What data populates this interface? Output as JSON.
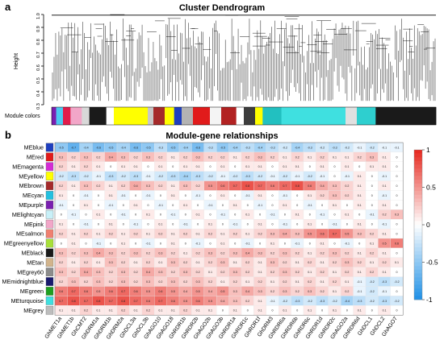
{
  "panels": {
    "a": {
      "letter": "a",
      "title": "Cluster Dendrogram",
      "ylabel": "Height",
      "y_ticks": [
        "0.3",
        "0.4",
        "0.5",
        "0.6",
        "0.7",
        "0.8",
        "0.9",
        "1.0"
      ],
      "color_bar_label": "Module colors"
    },
    "b": {
      "letter": "b",
      "title": "Module-gene relationships"
    }
  },
  "chart_data": [
    {
      "type": "dendrogram",
      "title": "Cluster Dendrogram",
      "ylabel": "Height",
      "ylim": [
        0.3,
        1.0
      ],
      "module_color_bar": [
        {
          "color": "#7a1fb0",
          "width": 0.012
        },
        {
          "color": "#4cc9f0",
          "width": 0.018
        },
        {
          "color": "#e11b4a",
          "width": 0.02
        },
        {
          "color": "#f2a6c8",
          "width": 0.03
        },
        {
          "color": "#d8d8d8",
          "width": 0.02
        },
        {
          "color": "#1a1a1a",
          "width": 0.045
        },
        {
          "color": "#ffffff",
          "width": 0.02
        },
        {
          "color": "#ffff00",
          "width": 0.09
        },
        {
          "color": "#c8c8c8",
          "width": 0.015
        },
        {
          "color": "#a52a2a",
          "width": 0.03
        },
        {
          "color": "#ffff00",
          "width": 0.025
        },
        {
          "color": "#1f3fbf",
          "width": 0.02
        },
        {
          "color": "#b3b3b3",
          "width": 0.03
        },
        {
          "color": "#e11b1b",
          "width": 0.045
        },
        {
          "color": "#f4f4f4",
          "width": 0.03
        },
        {
          "color": "#b22222",
          "width": 0.04
        },
        {
          "color": "#ffffff",
          "width": 0.02
        },
        {
          "color": "#3d3d3d",
          "width": 0.03
        },
        {
          "color": "#ffff00",
          "width": 0.02
        },
        {
          "color": "#22c0c0",
          "width": 0.05
        },
        {
          "color": "#3fe0e0",
          "width": 0.17
        },
        {
          "color": "#e0e0e0",
          "width": 0.03
        },
        {
          "color": "#2ecfcf",
          "width": 0.05
        },
        {
          "color": "#1a1a1a",
          "width": 0.16
        }
      ]
    },
    {
      "type": "heatmap",
      "title": "Module-gene relationships",
      "rows": [
        "MEblue",
        "MEred",
        "MEmagenta",
        "MEyellow",
        "MEbrown",
        "MEcyan",
        "MEpurple",
        "MElightcyan",
        "MEpink",
        "MEsalmon",
        "MEgreenyellow",
        "MEblack",
        "MEtan",
        "MEgrey60",
        "MEmidnightblue",
        "MEgreen",
        "MEturquoise",
        "MEgrey"
      ],
      "row_colors": [
        "#1f3fbf",
        "#e11b1b",
        "#d42cd4",
        "#ffff00",
        "#a52a2a",
        "#22c0e0",
        "#7a1fb0",
        "#c8f0f8",
        "#f2a6c8",
        "#f08070",
        "#a8e03a",
        "#1a1a1a",
        "#d2b48c",
        "#8c8c8c",
        "#1a1a6e",
        "#1fa01f",
        "#3fe0e0",
        "#bdbdbd"
      ],
      "columns": [
        "GhMET1a",
        "GhMET1b",
        "GhCMT2",
        "GhDRM1a",
        "GhDRM1b",
        "GhDRM2a",
        "GhDCL3a",
        "GhDCL3b",
        "GhAGO10",
        "GhAGO18",
        "GhRDR1b",
        "GhRDR2b",
        "GhAGO2b",
        "GhAGO3b",
        "GhRDR1a",
        "GhRDR1c",
        "GhRDR1f",
        "GhDRM3",
        "GhRDR6a",
        "GhRDR6b",
        "GhRDR6c",
        "GhRDR1d",
        "GhRDR2c",
        "GhAGO2a",
        "GhRDR6d",
        "GhDCL1",
        "GhDCL2",
        "GhAGO7"
      ],
      "scale": {
        "min": -1,
        "max": 1,
        "ticks": [
          "1",
          "0.5",
          "0",
          "-0.5",
          "-1"
        ]
      },
      "values": [
        [
          -0.5,
          -0.7,
          -0.4,
          -0.6,
          -0.5,
          -0.4,
          -0.6,
          -0.5,
          -0.3,
          -0.5,
          -0.4,
          -0.6,
          -0.3,
          -0.5,
          -0.4,
          -0.3,
          -0.4,
          -0.3,
          -0.2,
          -0.4,
          -0.3,
          -0.2,
          -0.3,
          -0.2,
          -0.1,
          -0.2,
          -0.1,
          -0.1
        ],
        [
          0.3,
          0.2,
          0.3,
          0.2,
          0.4,
          0.3,
          0.2,
          0.3,
          0.2,
          0.1,
          0.2,
          0.3,
          0.2,
          0.2,
          0.1,
          0.2,
          0.3,
          0.2,
          0.1,
          0.2,
          0.1,
          0.2,
          0.1,
          0.1,
          0.2,
          0.3,
          0.1,
          0.0
        ],
        [
          0.2,
          0.1,
          0.2,
          0.1,
          0.0,
          0.1,
          0.1,
          0.0,
          0.1,
          0.0,
          0.1,
          0.1,
          0.0,
          0.1,
          0.0,
          0.1,
          0.1,
          0.0,
          0.1,
          0.1,
          0.0,
          0.1,
          0.0,
          0.1,
          0.0,
          0.1,
          0.1,
          0.0
        ],
        [
          -0.2,
          -0.3,
          -0.2,
          -0.1,
          -0.3,
          -0.2,
          -0.3,
          -0.1,
          -0.2,
          -0.3,
          -0.4,
          -0.3,
          -0.2,
          -0.1,
          -0.2,
          -0.3,
          -0.2,
          -0.1,
          -0.2,
          -0.1,
          -0.2,
          -0.1,
          0.0,
          -0.1,
          0.1,
          0.0,
          -0.1,
          0.0
        ],
        [
          0.2,
          0.1,
          0.3,
          0.2,
          0.1,
          0.2,
          0.4,
          0.3,
          0.2,
          0.1,
          0.3,
          0.2,
          0.5,
          0.6,
          0.7,
          0.8,
          0.7,
          0.6,
          0.7,
          0.8,
          0.6,
          0.4,
          0.3,
          0.2,
          0.1,
          0.0,
          0.1,
          0.0
        ],
        [
          0.1,
          0.0,
          -0.1,
          0.0,
          0.1,
          -0.1,
          0.0,
          -0.1,
          0.0,
          0.1,
          0.0,
          -0.1,
          0.0,
          0.1,
          0.0,
          -0.1,
          0.1,
          0.0,
          -0.1,
          0.0,
          0.1,
          0.2,
          0.3,
          0.2,
          0.1,
          0.0,
          -0.1,
          0.0
        ],
        [
          -0.1,
          0.0,
          0.1,
          0.0,
          -0.1,
          0.0,
          0.1,
          0.0,
          -0.1,
          0.0,
          0.1,
          0.0,
          -0.1,
          0.0,
          0.1,
          0.0,
          -0.1,
          0.0,
          0.1,
          0.0,
          -0.1,
          0.0,
          0.1,
          0.0,
          0.1,
          0.0,
          0.1,
          0.0
        ],
        [
          0.0,
          -0.1,
          0.0,
          0.1,
          0.0,
          -0.1,
          0.0,
          0.1,
          0.0,
          -0.1,
          0.0,
          0.1,
          0.0,
          -0.1,
          0.0,
          0.1,
          0.0,
          -0.1,
          0.0,
          0.1,
          0.0,
          -0.1,
          0.0,
          0.1,
          0.0,
          -0.1,
          0.2,
          0.3
        ],
        [
          0.1,
          0.0,
          -0.1,
          0.0,
          0.1,
          0.0,
          -0.1,
          0.0,
          0.1,
          0.0,
          -0.1,
          0.0,
          0.1,
          0.0,
          -0.1,
          0.0,
          0.1,
          0.0,
          -0.1,
          0.0,
          0.1,
          0.0,
          -0.1,
          0.0,
          0.1,
          0.0,
          -0.1,
          0.0
        ],
        [
          0.2,
          0.1,
          0.2,
          0.1,
          0.2,
          0.1,
          0.2,
          0.1,
          0.2,
          0.1,
          0.2,
          0.1,
          0.2,
          0.1,
          0.2,
          0.1,
          0.2,
          0.3,
          0.4,
          0.3,
          0.5,
          0.6,
          0.7,
          0.5,
          0.3,
          0.2,
          0.1,
          0.0
        ],
        [
          0.0,
          0.1,
          0.0,
          -0.1,
          0.0,
          0.1,
          0.0,
          -0.1,
          0.0,
          0.1,
          0.0,
          -0.1,
          0.0,
          0.1,
          0.0,
          -0.1,
          0.0,
          0.1,
          0.0,
          -0.1,
          0.0,
          0.1,
          0.0,
          -0.1,
          0.0,
          0.1,
          0.5,
          0.6
        ],
        [
          0.3,
          0.2,
          0.3,
          0.4,
          0.3,
          0.2,
          0.3,
          0.2,
          0.3,
          0.2,
          0.1,
          0.2,
          0.3,
          0.2,
          0.3,
          0.4,
          0.3,
          0.2,
          0.3,
          0.2,
          0.1,
          0.2,
          0.3,
          0.2,
          0.1,
          0.2,
          0.1,
          0.0
        ],
        [
          0.2,
          0.1,
          0.2,
          0.1,
          0.3,
          0.2,
          0.1,
          0.2,
          0.1,
          0.3,
          0.2,
          0.1,
          0.2,
          0.3,
          0.1,
          0.2,
          0.1,
          0.3,
          0.2,
          0.1,
          0.2,
          0.1,
          0.2,
          0.3,
          0.2,
          0.1,
          0.2,
          0.1
        ],
        [
          0.3,
          0.2,
          0.4,
          0.3,
          0.2,
          0.3,
          0.2,
          0.4,
          0.3,
          0.2,
          0.3,
          0.2,
          0.1,
          0.2,
          0.3,
          0.2,
          0.1,
          0.2,
          0.3,
          0.2,
          0.1,
          0.2,
          0.1,
          0.2,
          0.1,
          0.2,
          0.1,
          0.0
        ],
        [
          0.2,
          0.3,
          0.2,
          0.3,
          0.2,
          0.3,
          0.2,
          0.3,
          0.2,
          0.3,
          0.2,
          0.3,
          0.2,
          0.1,
          0.2,
          0.1,
          0.2,
          0.1,
          0.2,
          0.1,
          0.2,
          0.1,
          0.2,
          0.1,
          -0.1,
          -0.2,
          -0.3,
          -0.2
        ],
        [
          0.6,
          0.7,
          0.6,
          0.5,
          0.6,
          0.7,
          0.6,
          0.5,
          0.6,
          0.5,
          0.4,
          0.5,
          0.4,
          0.5,
          0.3,
          0.4,
          0.3,
          0.2,
          0.3,
          0.2,
          0.3,
          0.2,
          0.1,
          0.2,
          -0.1,
          -0.2,
          -0.1,
          0.0
        ],
        [
          0.7,
          0.8,
          0.7,
          0.8,
          0.7,
          0.8,
          0.7,
          0.6,
          0.7,
          0.6,
          0.5,
          0.6,
          0.5,
          0.4,
          0.3,
          0.2,
          0.1,
          -0.1,
          -0.2,
          -0.3,
          -0.2,
          -0.3,
          -0.2,
          -0.4,
          -0.3,
          -0.2,
          -0.3,
          -0.2
        ],
        [
          0.1,
          0.1,
          0.2,
          0.1,
          0.1,
          0.2,
          0.1,
          0.2,
          0.1,
          0.1,
          0.2,
          0.1,
          0.1,
          0.0,
          0.1,
          0.0,
          0.1,
          0.0,
          0.1,
          0.0,
          0.1,
          0.0,
          0.1,
          0.0,
          0.1,
          0.0,
          0.1,
          0.0
        ]
      ]
    }
  ]
}
